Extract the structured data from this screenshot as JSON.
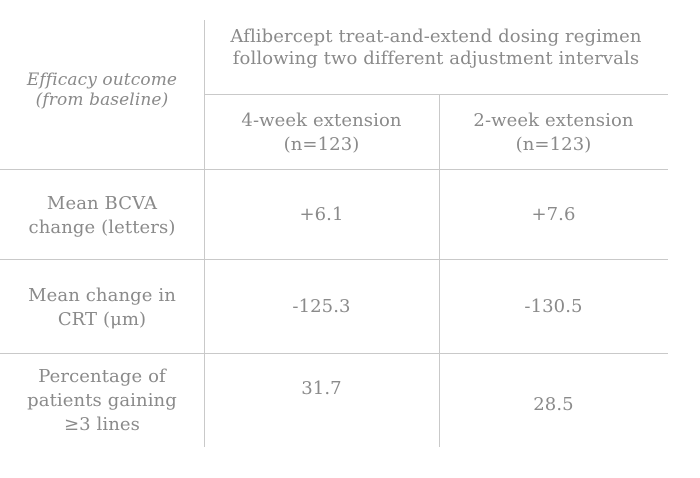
{
  "header": {
    "efficacy_label_line1": "Efficacy outcome",
    "efficacy_label_line2": "(from baseline)",
    "regimen_title_line1": "Aflibercept treat-and-extend dosing regimen",
    "regimen_title_line2": "following two different adjustment intervals",
    "col1_line1": "4-week extension",
    "col1_line2": "(n=123)",
    "col2_line1": "2-week extension",
    "col2_line2": "(n=123)"
  },
  "rows": [
    {
      "label_lines": [
        "Mean BCVA",
        "change (letters)"
      ],
      "col1": "+6.1",
      "col2": "+7.6"
    },
    {
      "label_lines": [
        "Mean change in",
        "CRT (μm)"
      ],
      "col1": "-125.3",
      "col2": "-130.5"
    },
    {
      "label_lines": [
        "Percentage of",
        "patients gaining",
        "≥3 lines"
      ],
      "col1": "31.7",
      "col2": "28.5"
    }
  ]
}
